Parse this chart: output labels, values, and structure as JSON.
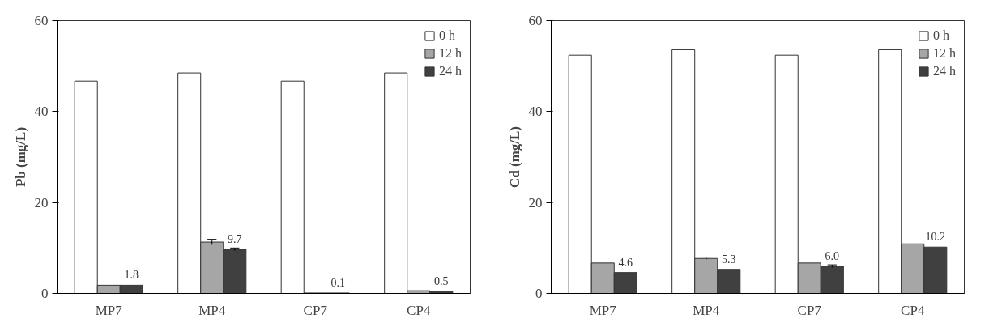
{
  "chart_data": [
    {
      "type": "bar",
      "ylabel": "Pb (mg/L)",
      "categories": [
        "MP7",
        "MP4",
        "CP7",
        "CP4"
      ],
      "ylim": [
        0,
        60
      ],
      "yticks": [
        0,
        20,
        40,
        60
      ],
      "grid": false,
      "legend": "top right",
      "series": [
        {
          "name": "0 h",
          "color": "#ffffff",
          "values": [
            46.7,
            48.5,
            46.7,
            48.5
          ]
        },
        {
          "name": "12 h",
          "color": "#a6a6a6",
          "values": [
            1.8,
            11.3,
            0.1,
            0.6
          ],
          "errors": [
            null,
            0.6,
            null,
            null
          ]
        },
        {
          "name": "24 h",
          "color": "#404040",
          "values": [
            1.8,
            9.7,
            0.1,
            0.5
          ],
          "errors": [
            null,
            0.3,
            null,
            null
          ],
          "value_labels": [
            "1.8",
            "9.7",
            "0.1",
            "0.5"
          ]
        }
      ]
    },
    {
      "type": "bar",
      "ylabel": "Cd (mg/L)",
      "categories": [
        "MP7",
        "MP4",
        "CP7",
        "CP4"
      ],
      "ylim": [
        0,
        60
      ],
      "yticks": [
        0,
        20,
        40,
        60
      ],
      "grid": false,
      "legend": "top right",
      "series": [
        {
          "name": "0 h",
          "color": "#ffffff",
          "values": [
            52.4,
            53.6,
            52.4,
            53.6
          ]
        },
        {
          "name": "12 h",
          "color": "#a6a6a6",
          "values": [
            6.7,
            7.7,
            6.7,
            10.9
          ],
          "errors": [
            null,
            0.3,
            null,
            null
          ]
        },
        {
          "name": "24 h",
          "color": "#404040",
          "values": [
            4.6,
            5.3,
            6.0,
            10.2
          ],
          "errors": [
            null,
            null,
            0.3,
            null
          ],
          "value_labels": [
            "4.6",
            "5.3",
            "6.0",
            "10.2"
          ]
        }
      ]
    }
  ]
}
